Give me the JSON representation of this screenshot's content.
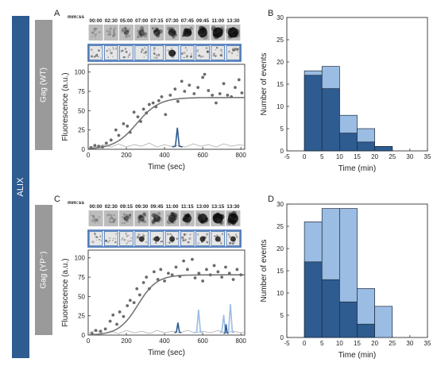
{
  "side_label": "ALIX",
  "panel_letters": [
    "A",
    "B",
    "C",
    "D"
  ],
  "time_header_label": "mm:ss",
  "colors": {
    "dark_blue": "#2e5b90",
    "light_blue": "#9bbce3",
    "gray": "#8c8c8c",
    "label_gray": "#9a9a9a",
    "frame_border": "#3a6bb0"
  },
  "chart_data": [
    {
      "panel": "A",
      "type": "scatter",
      "condition_label": "Gag (WT)",
      "frame_times": [
        "00:00",
        "02:30",
        "05:00",
        "07:00",
        "07:15",
        "07:30",
        "07:45",
        "09:45",
        "11:00",
        "13:30"
      ],
      "xlabel": "Time (sec)",
      "ylabel": "Fluorescence (a.u.)",
      "xlim": [
        0,
        820
      ],
      "ylim": [
        0,
        110
      ],
      "xticks": [
        0,
        200,
        400,
        600,
        800
      ],
      "yticks": [
        0,
        25,
        50,
        75,
        100
      ],
      "points": [
        [
          15,
          2
        ],
        [
          35,
          5
        ],
        [
          55,
          4
        ],
        [
          75,
          3
        ],
        [
          95,
          8
        ],
        [
          120,
          12
        ],
        [
          145,
          25
        ],
        [
          160,
          18
        ],
        [
          185,
          33
        ],
        [
          205,
          30
        ],
        [
          220,
          22
        ],
        [
          240,
          48
        ],
        [
          260,
          42
        ],
        [
          275,
          36
        ],
        [
          290,
          52
        ],
        [
          305,
          47
        ],
        [
          320,
          58
        ],
        [
          340,
          60
        ],
        [
          355,
          55
        ],
        [
          370,
          63
        ],
        [
          385,
          68
        ],
        [
          405,
          45
        ],
        [
          430,
          70
        ],
        [
          455,
          78
        ],
        [
          470,
          62
        ],
        [
          490,
          88
        ],
        [
          505,
          75
        ],
        [
          530,
          83
        ],
        [
          555,
          72
        ],
        [
          575,
          80
        ],
        [
          600,
          93
        ],
        [
          610,
          97
        ],
        [
          630,
          76
        ],
        [
          650,
          70
        ],
        [
          670,
          60
        ],
        [
          690,
          72
        ],
        [
          710,
          85
        ],
        [
          730,
          70
        ],
        [
          750,
          68
        ],
        [
          770,
          80
        ],
        [
          790,
          90
        ],
        [
          805,
          73
        ]
      ],
      "fit_params": {
        "ymax": 67,
        "x0": 255,
        "k": 0.017
      },
      "fit_x_range": [
        0,
        820
      ],
      "bg_line": [
        [
          0,
          4
        ],
        [
          40,
          3
        ],
        [
          80,
          6
        ],
        [
          120,
          3
        ],
        [
          160,
          7
        ],
        [
          200,
          3
        ],
        [
          240,
          6
        ],
        [
          280,
          4
        ],
        [
          320,
          8
        ],
        [
          360,
          3
        ],
        [
          400,
          6
        ],
        [
          430,
          4
        ],
        [
          470,
          5
        ],
        [
          510,
          3
        ],
        [
          550,
          7
        ],
        [
          590,
          4
        ],
        [
          630,
          6
        ],
        [
          670,
          3
        ],
        [
          710,
          7
        ],
        [
          750,
          4
        ],
        [
          790,
          6
        ],
        [
          815,
          5
        ]
      ],
      "peaks": [
        {
          "color": "dark",
          "x": [
            440,
            457,
            467,
            477,
            494
          ],
          "y": [
            3,
            4,
            28,
            4,
            3
          ]
        }
      ]
    },
    {
      "panel": "B",
      "type": "bar",
      "xlabel": "Time (min)",
      "ylabel": "Number of events",
      "xlim": [
        -5,
        35
      ],
      "ylim": [
        0,
        30
      ],
      "xticks": [
        -5,
        0,
        5,
        10,
        15,
        20,
        25,
        30,
        35
      ],
      "yticks": [
        0,
        5,
        10,
        15,
        20,
        25,
        30
      ],
      "bin_edges": [
        0,
        5,
        10,
        15,
        20,
        25
      ],
      "series": [
        {
          "values": [
            17,
            14,
            4,
            2,
            1
          ]
        },
        {
          "values": [
            18,
            19,
            8,
            5,
            1
          ]
        }
      ]
    },
    {
      "panel": "C",
      "type": "scatter",
      "condition_label": "Gag (YP⁻)",
      "frame_times": [
        "00:00",
        "02:30",
        "09:15",
        "09:30",
        "09:45",
        "11:00",
        "11:15",
        "13:00",
        "13:15",
        "13:30"
      ],
      "xlabel": "Time (sec)",
      "ylabel": "Fluorescence (a.u.)",
      "xlim": [
        0,
        820
      ],
      "ylim": [
        0,
        110
      ],
      "xticks": [
        0,
        200,
        400,
        600,
        800
      ],
      "yticks": [
        0,
        25,
        50,
        75,
        100
      ],
      "points": [
        [
          20,
          2
        ],
        [
          40,
          6
        ],
        [
          65,
          5
        ],
        [
          90,
          8
        ],
        [
          115,
          18
        ],
        [
          130,
          26
        ],
        [
          150,
          14
        ],
        [
          165,
          30
        ],
        [
          185,
          24
        ],
        [
          205,
          38
        ],
        [
          220,
          45
        ],
        [
          240,
          42
        ],
        [
          255,
          60
        ],
        [
          270,
          52
        ],
        [
          290,
          68
        ],
        [
          305,
          75
        ],
        [
          320,
          60
        ],
        [
          345,
          82
        ],
        [
          365,
          72
        ],
        [
          380,
          85
        ],
        [
          400,
          70
        ],
        [
          420,
          80
        ],
        [
          440,
          78
        ],
        [
          460,
          88
        ],
        [
          480,
          76
        ],
        [
          500,
          96
        ],
        [
          520,
          85
        ],
        [
          545,
          98
        ],
        [
          560,
          74
        ],
        [
          580,
          80
        ],
        [
          600,
          70
        ],
        [
          620,
          85
        ],
        [
          640,
          78
        ],
        [
          660,
          90
        ],
        [
          680,
          82
        ],
        [
          700,
          75
        ],
        [
          720,
          88
        ],
        [
          740,
          80
        ],
        [
          760,
          72
        ],
        [
          780,
          85
        ],
        [
          800,
          78
        ]
      ],
      "fit_params": {
        "ymax": 78,
        "x0": 260,
        "k": 0.02
      },
      "fit_x_range": [
        0,
        820
      ],
      "bg_line": [
        [
          0,
          3
        ],
        [
          40,
          6
        ],
        [
          80,
          2
        ],
        [
          120,
          5
        ],
        [
          160,
          2
        ],
        [
          200,
          6
        ],
        [
          240,
          3
        ],
        [
          280,
          5
        ],
        [
          320,
          2
        ],
        [
          360,
          6
        ],
        [
          400,
          3
        ],
        [
          440,
          5
        ],
        [
          480,
          3
        ],
        [
          520,
          6
        ],
        [
          560,
          3
        ],
        [
          600,
          5
        ],
        [
          640,
          3
        ],
        [
          680,
          6
        ],
        [
          720,
          3
        ],
        [
          760,
          5
        ],
        [
          800,
          3
        ],
        [
          815,
          4
        ]
      ],
      "peaks": [
        {
          "color": "dark",
          "x": [
            452,
            462,
            470,
            478,
            488
          ],
          "y": [
            3,
            4,
            16,
            4,
            3
          ]
        },
        {
          "color": "light",
          "x": [
            555,
            568,
            578,
            588,
            600
          ],
          "y": [
            3,
            4,
            33,
            4,
            3
          ]
        },
        {
          "color": "light",
          "x": [
            690,
            700,
            710,
            718,
            728
          ],
          "y": [
            3,
            4,
            26,
            4,
            3
          ]
        },
        {
          "color": "light",
          "x": [
            725,
            735,
            745,
            755,
            765
          ],
          "y": [
            3,
            4,
            40,
            4,
            3
          ]
        },
        {
          "color": "dark",
          "x": [
            710,
            717,
            722,
            728,
            735
          ],
          "y": [
            2,
            3,
            14,
            3,
            2
          ]
        }
      ]
    },
    {
      "panel": "D",
      "type": "bar",
      "xlabel": "Time (min)",
      "ylabel": "Number of events",
      "xlim": [
        -5,
        35
      ],
      "ylim": [
        0,
        30
      ],
      "xticks": [
        -5,
        0,
        5,
        10,
        15,
        20,
        25,
        30,
        35
      ],
      "yticks": [
        0,
        5,
        10,
        15,
        20,
        25,
        30
      ],
      "bin_edges": [
        0,
        5,
        10,
        15,
        20,
        25
      ],
      "series": [
        {
          "values": [
            17,
            13,
            8,
            3,
            0
          ]
        },
        {
          "values": [
            26,
            29,
            29,
            11,
            7
          ]
        }
      ]
    }
  ]
}
